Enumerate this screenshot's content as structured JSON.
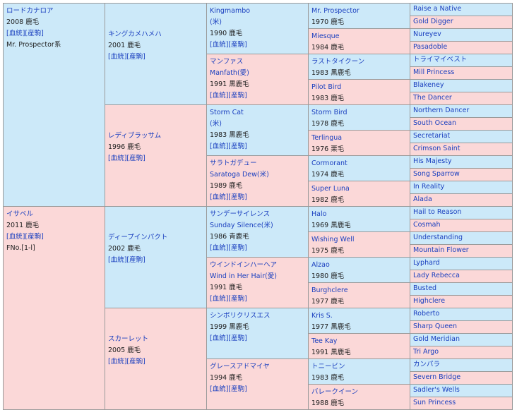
{
  "horse": {
    "name": "ロードカナロア",
    "year": "2008",
    "color": "鹿毛",
    "bloodline": "[血統][産駒]",
    "line": "Mr. Prospector系"
  },
  "g1_dam": {
    "name": "イサベル",
    "year": "2011",
    "color": "鹿毛",
    "bloodline": "[血統][産駒]",
    "family": "FNo.[1-l]"
  },
  "g2": [
    {
      "name": "キングカメハメハ",
      "year": "2001",
      "color": "鹿毛",
      "bloodline": "[血統][産駒]"
    },
    {
      "name": "レディブラッサム",
      "year": "1996",
      "color": "鹿毛",
      "bloodline": "[血統][産駒]"
    },
    {
      "name": "ディープインパクト",
      "year": "2002",
      "color": "鹿毛",
      "bloodline": "[血統][産駒]"
    },
    {
      "name": "スカーレット",
      "year": "2005",
      "color": "鹿毛",
      "bloodline": "[血統][産駒]"
    }
  ],
  "g3": [
    {
      "name": "Kingmambo",
      "sub": "(米)",
      "year": "1990",
      "color": "鹿毛",
      "bloodline": "[血統][産駒]"
    },
    {
      "name": "マンファス",
      "sub": "Manfath(愛)",
      "year": "1991",
      "color": "黒鹿毛",
      "bloodline": "[血統][産駒]"
    },
    {
      "name": "Storm Cat",
      "sub": "(米)",
      "year": "1983",
      "color": "黒鹿毛",
      "bloodline": "[血統][産駒]"
    },
    {
      "name": "サラトガデュー",
      "sub": "Saratoga Dew(米)",
      "year": "1989",
      "color": "鹿毛",
      "bloodline": "[血統][産駒]"
    },
    {
      "name": "サンデーサイレンス",
      "sub": "Sunday Silence(米)",
      "year": "1986",
      "color": "青鹿毛",
      "bloodline": "[血統][産駒]"
    },
    {
      "name": "ウインドインハーヘア",
      "sub": "Wind in Her Hair(愛)",
      "year": "1991",
      "color": "鹿毛",
      "bloodline": "[血統][産駒]"
    },
    {
      "name": "シンボリクリスエス",
      "year": "1999",
      "color": "黒鹿毛",
      "bloodline": "[血統][産駒]"
    },
    {
      "name": "グレースアドマイヤ",
      "year": "1994",
      "color": "鹿毛",
      "bloodline": "[血統][産駒]"
    }
  ],
  "g4": [
    {
      "name": "Mr. Prospector",
      "year": "1970",
      "color": "鹿毛"
    },
    {
      "name": "Miesque",
      "year": "1984",
      "color": "鹿毛"
    },
    {
      "name": "ラストタイクーン",
      "year": "1983",
      "color": "黒鹿毛"
    },
    {
      "name": "Pilot Bird",
      "year": "1983",
      "color": "鹿毛"
    },
    {
      "name": "Storm Bird",
      "year": "1978",
      "color": "鹿毛"
    },
    {
      "name": "Terlingua",
      "year": "1976",
      "color": "栗毛"
    },
    {
      "name": "Cormorant",
      "year": "1974",
      "color": "鹿毛"
    },
    {
      "name": "Super Luna",
      "year": "1982",
      "color": "鹿毛"
    },
    {
      "name": "Halo",
      "year": "1969",
      "color": "黒鹿毛"
    },
    {
      "name": "Wishing Well",
      "year": "1975",
      "color": "鹿毛"
    },
    {
      "name": "Alzao",
      "year": "1980",
      "color": "鹿毛"
    },
    {
      "name": "Burghclere",
      "year": "1977",
      "color": "鹿毛"
    },
    {
      "name": "Kris S.",
      "year": "1977",
      "color": "黒鹿毛"
    },
    {
      "name": "Tee Kay",
      "year": "1991",
      "color": "黒鹿毛"
    },
    {
      "name": "トニービン",
      "year": "1983",
      "color": "鹿毛"
    },
    {
      "name": "バレークイーン",
      "year": "1988",
      "color": "鹿毛"
    }
  ],
  "g5": [
    "Raise a Native",
    "Gold Digger",
    "Nureyev",
    "Pasadoble",
    "トライマイベスト",
    "Mill Princess",
    "Blakeney",
    "The Dancer",
    "Northern Dancer",
    "South Ocean",
    "Secretariat",
    "Crimson Saint",
    "His Majesty",
    "Song Sparrow",
    "In Reality",
    "Alada",
    "Hail to Reason",
    "Cosmah",
    "Understanding",
    "Mountain Flower",
    "Lyphard",
    "Lady Rebecca",
    "Busted",
    "Highclere",
    "Roberto",
    "Sharp Queen",
    "Gold Meridian",
    "Tri Argo",
    "カンパラ",
    "Severn Bridge",
    "Sadler's Wells",
    "Sun Princess"
  ],
  "colors": {
    "male_bg": "#cce9f9",
    "female_bg": "#fbd8d8",
    "link": "#1a3fbf",
    "border": "#9a9a9a"
  }
}
